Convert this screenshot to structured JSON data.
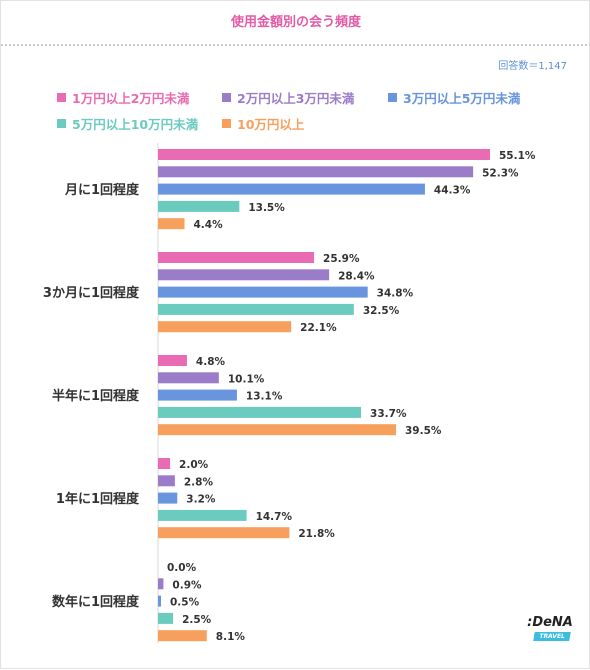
{
  "title": "使用金額別の会う頻度",
  "answer_count": "回答数＝1,147",
  "logo": {
    "name": ":DeNA",
    "tag": "TRAVEL"
  },
  "chart_data": {
    "type": "bar",
    "orientation": "horizontal",
    "title": "使用金額別の会う頻度",
    "categories": [
      "月に1回程度",
      "3か月に1回程度",
      "半年に1回程度",
      "1年に1回程度",
      "数年に1回程度"
    ],
    "unit": "%",
    "xlim": [
      0,
      60
    ],
    "grid": false,
    "legend_position": "top",
    "series": [
      {
        "name": "1万円以上2万円未満",
        "color": "#e86bb3",
        "values": [
          55.1,
          25.9,
          4.8,
          2.0,
          0.0
        ]
      },
      {
        "name": "2万円以上3万円未満",
        "color": "#9b7cc8",
        "values": [
          52.3,
          28.4,
          10.1,
          2.8,
          0.9
        ]
      },
      {
        "name": "3万円以上5万円未満",
        "color": "#6895dd",
        "values": [
          44.3,
          34.8,
          13.1,
          3.2,
          0.5
        ]
      },
      {
        "name": "5万円以上10万円未満",
        "color": "#6ccbbf",
        "values": [
          13.5,
          32.5,
          33.7,
          14.7,
          2.5
        ]
      },
      {
        "name": "10万円以上",
        "color": "#f7a05d",
        "values": [
          4.4,
          22.1,
          39.5,
          21.8,
          8.1
        ]
      }
    ]
  }
}
